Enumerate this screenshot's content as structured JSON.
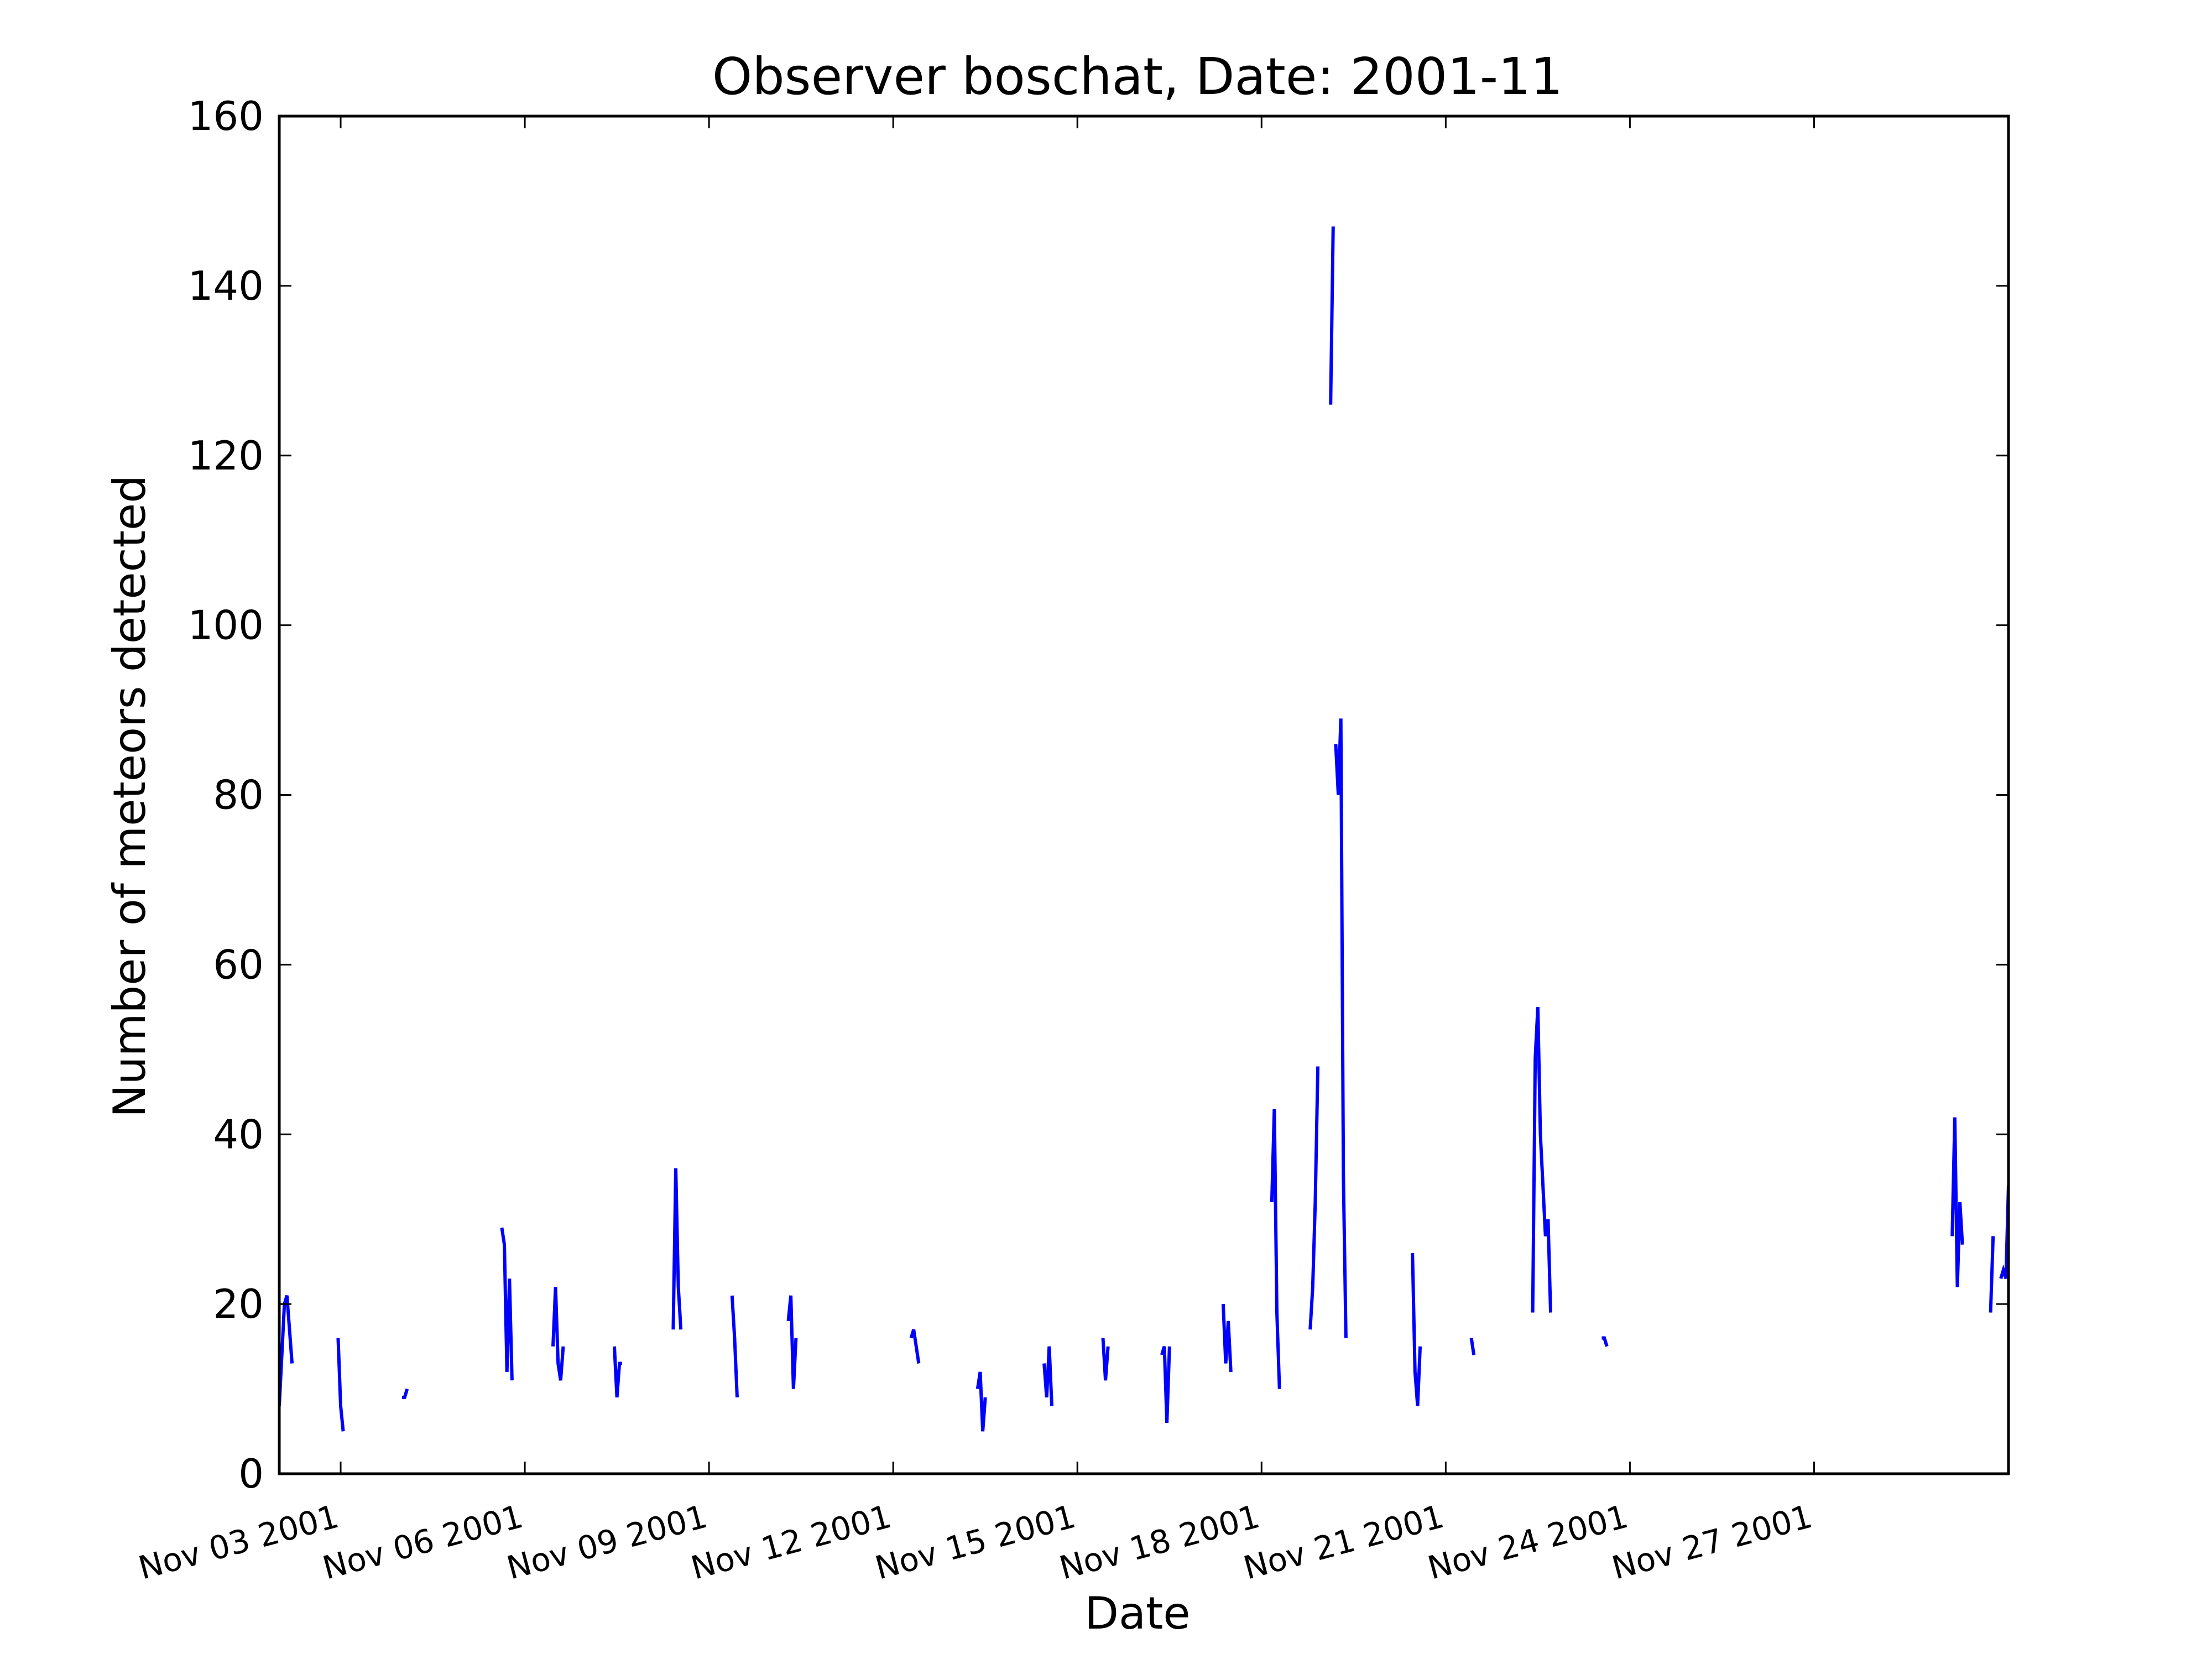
{
  "chart_data": {
    "type": "line",
    "title": "Observer boschat, Date: 2001-11",
    "xlabel": "Date",
    "ylabel": "Number of meteors detected",
    "xlim": [
      "2001-11-02T00:00",
      "2001-11-30T04:00"
    ],
    "ylim": [
      0,
      160
    ],
    "x_ticks": [
      {
        "date": "2001-11-03",
        "label": "Nov 03 2001"
      },
      {
        "date": "2001-11-06",
        "label": "Nov 06 2001"
      },
      {
        "date": "2001-11-09",
        "label": "Nov 09 2001"
      },
      {
        "date": "2001-11-12",
        "label": "Nov 12 2001"
      },
      {
        "date": "2001-11-15",
        "label": "Nov 15 2001"
      },
      {
        "date": "2001-11-18",
        "label": "Nov 18 2001"
      },
      {
        "date": "2001-11-21",
        "label": "Nov 21 2001"
      },
      {
        "date": "2001-11-24",
        "label": "Nov 24 2001"
      },
      {
        "date": "2001-11-27",
        "label": "Nov 27 2001"
      }
    ],
    "y_ticks": [
      0,
      20,
      40,
      60,
      80,
      100,
      120,
      140,
      160
    ],
    "grid": false,
    "line_color": "#0000ff",
    "series": [
      {
        "segments": [
          [
            [
              "2001-11-02T00:00",
              8
            ],
            [
              "2001-11-02T02:00",
              20
            ],
            [
              "2001-11-02T03:00",
              21
            ],
            [
              "2001-11-02T05:00",
              13
            ]
          ],
          [
            [
              "2001-11-02T23:00",
              16
            ],
            [
              "2001-11-03T00:00",
              8
            ],
            [
              "2001-11-03T01:00",
              5
            ]
          ],
          [
            [
              "2001-11-04T00:00",
              9
            ],
            [
              "2001-11-04T01:00",
              9
            ],
            [
              "2001-11-04T02:00",
              10
            ]
          ],
          [
            [
              "2001-11-05T15:00",
              29
            ],
            [
              "2001-11-05T16:00",
              27
            ],
            [
              "2001-11-05T17:00",
              12
            ],
            [
              "2001-11-05T18:00",
              23
            ],
            [
              "2001-11-05T19:00",
              11
            ]
          ],
          [
            [
              "2001-11-06T11:00",
              15
            ],
            [
              "2001-11-06T12:00",
              22
            ],
            [
              "2001-11-06T13:00",
              13
            ],
            [
              "2001-11-06T14:00",
              11
            ],
            [
              "2001-11-06T15:00",
              15
            ]
          ],
          [
            [
              "2001-11-07T11:00",
              15
            ],
            [
              "2001-11-07T12:00",
              9
            ],
            [
              "2001-11-07T13:00",
              13
            ],
            [
              "2001-11-07T14:00",
              13
            ]
          ],
          [
            [
              "2001-11-08T10:00",
              17
            ],
            [
              "2001-11-08T11:00",
              36
            ],
            [
              "2001-11-08T12:00",
              22
            ],
            [
              "2001-11-08T13:00",
              17
            ]
          ],
          [
            [
              "2001-11-09T09:00",
              21
            ],
            [
              "2001-11-09T10:00",
              16
            ],
            [
              "2001-11-09T11:00",
              9
            ]
          ],
          [
            [
              "2001-11-10T07:00",
              18
            ],
            [
              "2001-11-10T08:00",
              21
            ],
            [
              "2001-11-10T09:00",
              10
            ],
            [
              "2001-11-10T10:00",
              16
            ]
          ],
          [
            [
              "2001-11-12T07:00",
              16
            ],
            [
              "2001-11-12T08:00",
              17
            ],
            [
              "2001-11-12T10:00",
              13
            ]
          ],
          [
            [
              "2001-11-13T09:00",
              10
            ],
            [
              "2001-11-13T10:00",
              12
            ],
            [
              "2001-11-13T11:00",
              5
            ],
            [
              "2001-11-13T12:00",
              9
            ]
          ],
          [
            [
              "2001-11-14T11:00",
              13
            ],
            [
              "2001-11-14T12:00",
              9
            ],
            [
              "2001-11-14T13:00",
              15
            ],
            [
              "2001-11-14T14:00",
              8
            ]
          ],
          [
            [
              "2001-11-15T10:00",
              16
            ],
            [
              "2001-11-15T11:00",
              11
            ],
            [
              "2001-11-15T12:00",
              15
            ]
          ],
          [
            [
              "2001-11-16T09:00",
              14
            ],
            [
              "2001-11-16T10:00",
              15
            ],
            [
              "2001-11-16T11:00",
              6
            ],
            [
              "2001-11-16T12:00",
              15
            ]
          ],
          [
            [
              "2001-11-17T09:00",
              20
            ],
            [
              "2001-11-17T10:00",
              13
            ],
            [
              "2001-11-17T11:00",
              18
            ],
            [
              "2001-11-17T12:00",
              12
            ]
          ],
          [
            [
              "2001-11-18T04:00",
              32
            ],
            [
              "2001-11-18T05:00",
              43
            ],
            [
              "2001-11-18T06:00",
              19
            ],
            [
              "2001-11-18T07:00",
              10
            ]
          ],
          [
            [
              "2001-11-18T19:00",
              17
            ],
            [
              "2001-11-18T20:00",
              22
            ],
            [
              "2001-11-18T21:00",
              32
            ],
            [
              "2001-11-18T22:00",
              48
            ]
          ],
          [
            [
              "2001-11-19T03:00",
              126
            ],
            [
              "2001-11-19T04:00",
              147
            ]
          ],
          [
            [
              "2001-11-19T05:00",
              86
            ],
            [
              "2001-11-19T06:00",
              80
            ],
            [
              "2001-11-19T07:00",
              89
            ],
            [
              "2001-11-19T08:00",
              35
            ],
            [
              "2001-11-19T09:00",
              16
            ]
          ],
          [
            [
              "2001-11-20T11:00",
              26
            ],
            [
              "2001-11-20T12:00",
              12
            ],
            [
              "2001-11-20T13:00",
              8
            ],
            [
              "2001-11-20T14:00",
              15
            ]
          ],
          [
            [
              "2001-11-21T10:00",
              16
            ],
            [
              "2001-11-21T11:00",
              14
            ]
          ],
          [
            [
              "2001-11-22T10:00",
              19
            ],
            [
              "2001-11-22T11:00",
              49
            ],
            [
              "2001-11-22T12:00",
              55
            ],
            [
              "2001-11-22T13:00",
              40
            ],
            [
              "2001-11-22T15:00",
              28
            ],
            [
              "2001-11-22T16:00",
              30
            ],
            [
              "2001-11-22T17:00",
              19
            ]
          ],
          [
            [
              "2001-11-23T13:00",
              16
            ],
            [
              "2001-11-23T14:00",
              16
            ],
            [
              "2001-11-23T15:00",
              15
            ]
          ],
          [
            [
              "2001-11-29T06:00",
              28
            ],
            [
              "2001-11-29T07:00",
              42
            ],
            [
              "2001-11-29T08:00",
              22
            ],
            [
              "2001-11-29T09:00",
              32
            ],
            [
              "2001-11-29T10:00",
              27
            ]
          ],
          [
            [
              "2001-11-29T21:00",
              19
            ],
            [
              "2001-11-29T22:00",
              28
            ]
          ],
          [
            [
              "2001-11-30T01:00",
              23
            ],
            [
              "2001-11-30T02:00",
              24
            ],
            [
              "2001-11-30T03:00",
              23
            ],
            [
              "2001-11-30T04:00",
              34
            ]
          ]
        ]
      }
    ]
  }
}
